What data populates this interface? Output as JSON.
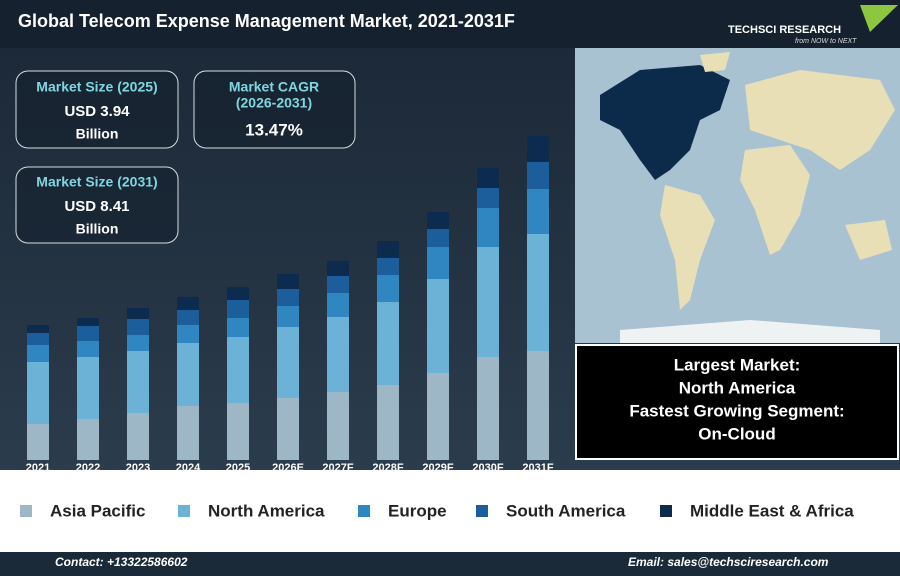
{
  "header": {
    "title": "Global Telecom Expense Management Market, 2021-2031F",
    "logo": "TECHSCI RESEARCH",
    "tagline": "from NOW to NEXT"
  },
  "stats": [
    {
      "label": "Market Size (2025)",
      "value": "USD 3.94",
      "unit": "Billion"
    },
    {
      "label": "Market CAGR",
      "sublabel": "(2026-2031)",
      "value": "13.47%"
    },
    {
      "label": "Market Size (2031)",
      "value": "USD 8.41",
      "unit": "Billion"
    }
  ],
  "highlights": [
    "Largest Market:",
    "North America",
    "Fastest Growing Segment:",
    "On-Cloud"
  ],
  "footer": {
    "contact": "Contact: +13322586602",
    "email": "Email: sales@techsciresearch.com"
  },
  "chart_data": {
    "type": "bar",
    "stacked": true,
    "categories": [
      "2021",
      "2022",
      "2023",
      "2024",
      "2025",
      "2026E",
      "2027F",
      "2028F",
      "2029F",
      "2030F",
      "2031F"
    ],
    "series": [
      {
        "name": "Asia Pacific",
        "color": "#9db7c6",
        "values": [
          36,
          41,
          47,
          54,
          57,
          62,
          68,
          75,
          87,
          103,
          109
        ]
      },
      {
        "name": "North America",
        "color": "#6cb2d6",
        "values": [
          62,
          62,
          62,
          63,
          66,
          71,
          75,
          83,
          94,
          110,
          117
        ]
      },
      {
        "name": "Europe",
        "color": "#2f86c0",
        "values": [
          17,
          16,
          16,
          18,
          19,
          21,
          24,
          27,
          32,
          39,
          45
        ]
      },
      {
        "name": "South America",
        "color": "#1c5d9b",
        "values": [
          12,
          15,
          16,
          15,
          18,
          17,
          17,
          17,
          18,
          20,
          27
        ]
      },
      {
        "name": "Middle East & Africa",
        "color": "#0c2b4e",
        "values": [
          8,
          8,
          11,
          13,
          13,
          15,
          15,
          17,
          17,
          20,
          26
        ]
      }
    ],
    "ylim": [
      0,
      330
    ]
  }
}
